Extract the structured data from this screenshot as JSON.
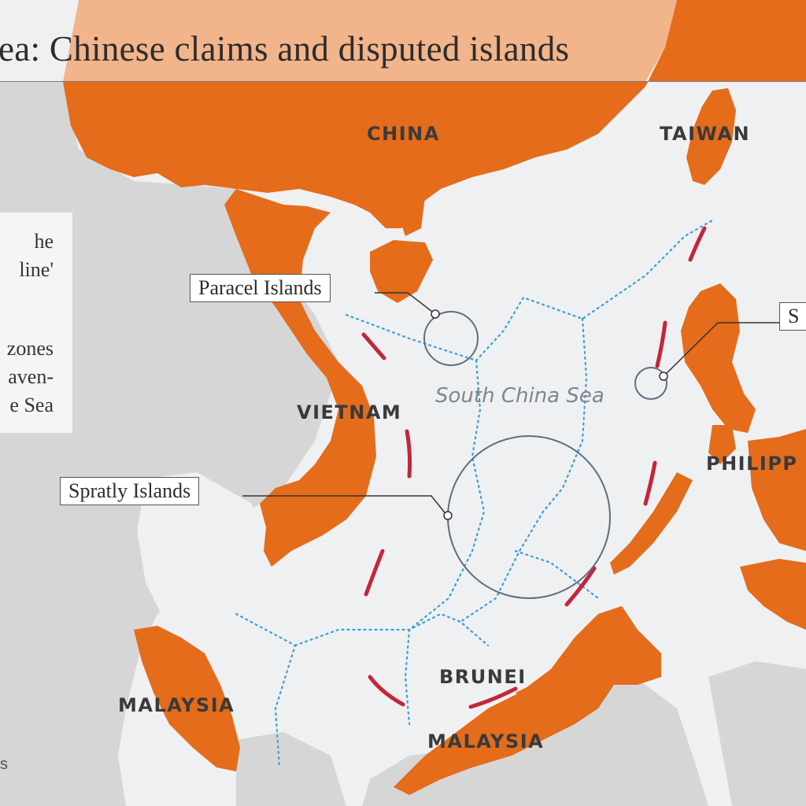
{
  "title": "ea: Chinese claims and disputed islands",
  "countries": {
    "china": "CHINA",
    "taiwan": "TAIWAN",
    "vietnam": "VIETNAM",
    "philippines": "PHILIPP",
    "brunei": "BRUNEI",
    "malaysia_west": "MALAYSIA",
    "malaysia_east": "MALAYSIA"
  },
  "sea_label": "South China Sea",
  "callouts": {
    "paracel": "Paracel Islands",
    "spratly": "Spratly Islands",
    "scarborough": "S"
  },
  "legend": {
    "line1": "he",
    "line2": "line'",
    "line3": "zones",
    "line4": "aven-",
    "line5": "e Sea"
  },
  "source": "s",
  "colors": {
    "claimant_country": "#e46c1b",
    "other_land": "#d4d4d4",
    "sea": "#eff0f2",
    "nine_dash_line": "#c3263a",
    "eez_boundary": "#3b9ed8",
    "island_circle": "#5f6f7c"
  }
}
